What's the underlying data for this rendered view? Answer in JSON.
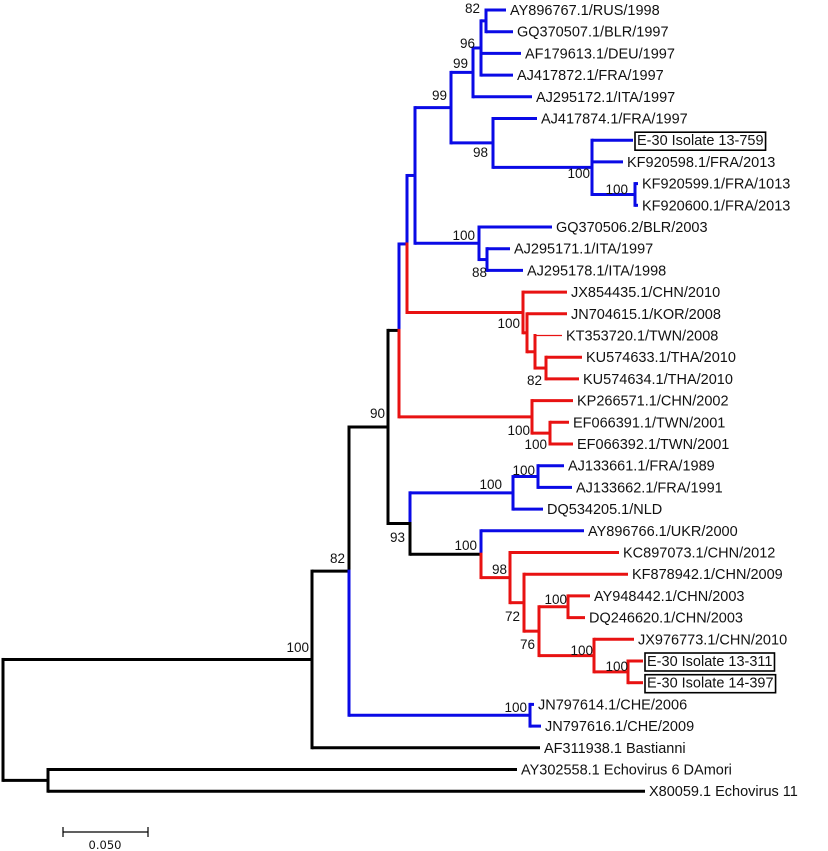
{
  "colors": {
    "blue": "#0a0ae6",
    "red": "#e81212",
    "black": "#000000"
  },
  "leaves": [
    {
      "label": "AY896767.1/RUS/1998",
      "color": "blue"
    },
    {
      "label": "GQ370507.1/BLR/1997",
      "color": "blue"
    },
    {
      "label": "AF179613.1/DEU/1997",
      "color": "blue"
    },
    {
      "label": "AJ417872.1/FRA/1997",
      "color": "blue"
    },
    {
      "label": "AJ295172.1/ITA/1997",
      "color": "blue"
    },
    {
      "label": "AJ417874.1/FRA/1997",
      "color": "blue"
    },
    {
      "label": "E-30 Isolate 13-759",
      "color": "blue",
      "boxed": true
    },
    {
      "label": "KF920598.1/FRA/2013",
      "color": "blue"
    },
    {
      "label": "KF920599.1/FRA/1013",
      "color": "blue"
    },
    {
      "label": "KF920600.1/FRA/2013",
      "color": "blue"
    },
    {
      "label": "GQ370506.2/BLR/2003",
      "color": "blue"
    },
    {
      "label": "AJ295171.1/ITA/1997",
      "color": "blue"
    },
    {
      "label": "AJ295178.1/ITA/1998",
      "color": "blue"
    },
    {
      "label": "JX854435.1/CHN/2010",
      "color": "red"
    },
    {
      "label": "JN704615.1/KOR/2008",
      "color": "red"
    },
    {
      "label": "KT353720.1/TWN/2008",
      "color": "red"
    },
    {
      "label": "KU574633.1/THA/2010",
      "color": "red"
    },
    {
      "label": "KU574634.1/THA/2010",
      "color": "red"
    },
    {
      "label": "KP266571.1/CHN/2002",
      "color": "red"
    },
    {
      "label": "EF066391.1/TWN/2001",
      "color": "red"
    },
    {
      "label": "EF066392.1/TWN/2001",
      "color": "red"
    },
    {
      "label": "AJ133661.1/FRA/1989",
      "color": "blue"
    },
    {
      "label": "AJ133662.1/FRA/1991",
      "color": "blue"
    },
    {
      "label": "DQ534205.1/NLD",
      "color": "blue"
    },
    {
      "label": "AY896766.1/UKR/2000",
      "color": "blue"
    },
    {
      "label": "KC897073.1/CHN/2012",
      "color": "red"
    },
    {
      "label": "KF878942.1/CHN/2009",
      "color": "red"
    },
    {
      "label": "AY948442.1/CHN/2003",
      "color": "red"
    },
    {
      "label": "DQ246620.1/CHN/2003",
      "color": "red"
    },
    {
      "label": "JX976773.1/CHN/2010",
      "color": "red"
    },
    {
      "label": "E-30 Isolate 13-311",
      "color": "red",
      "boxed": true
    },
    {
      "label": "E-30 Isolate 14-397",
      "color": "red",
      "boxed": true
    },
    {
      "label": "JN797614.1/CHE/2006",
      "color": "blue"
    },
    {
      "label": "JN797616.1/CHE/2009",
      "color": "blue"
    },
    {
      "label": "AF311938.1 Bastianni",
      "color": "black"
    },
    {
      "label": "AY302558.1 Echovirus 6 DAmori",
      "color": "black"
    },
    {
      "label": "X80059.1 Echovirus 11",
      "color": "black"
    }
  ],
  "bootstrap_values": [
    "82",
    "96",
    "99",
    "99",
    "98",
    "100",
    "100",
    "100",
    "88",
    "100",
    "82",
    "100",
    "100",
    "100",
    "100",
    "93",
    "90",
    "100",
    "82",
    "98",
    "72",
    "76",
    "100",
    "100",
    "100",
    "100",
    "100"
  ],
  "scale_bar": {
    "label": "0.050"
  }
}
